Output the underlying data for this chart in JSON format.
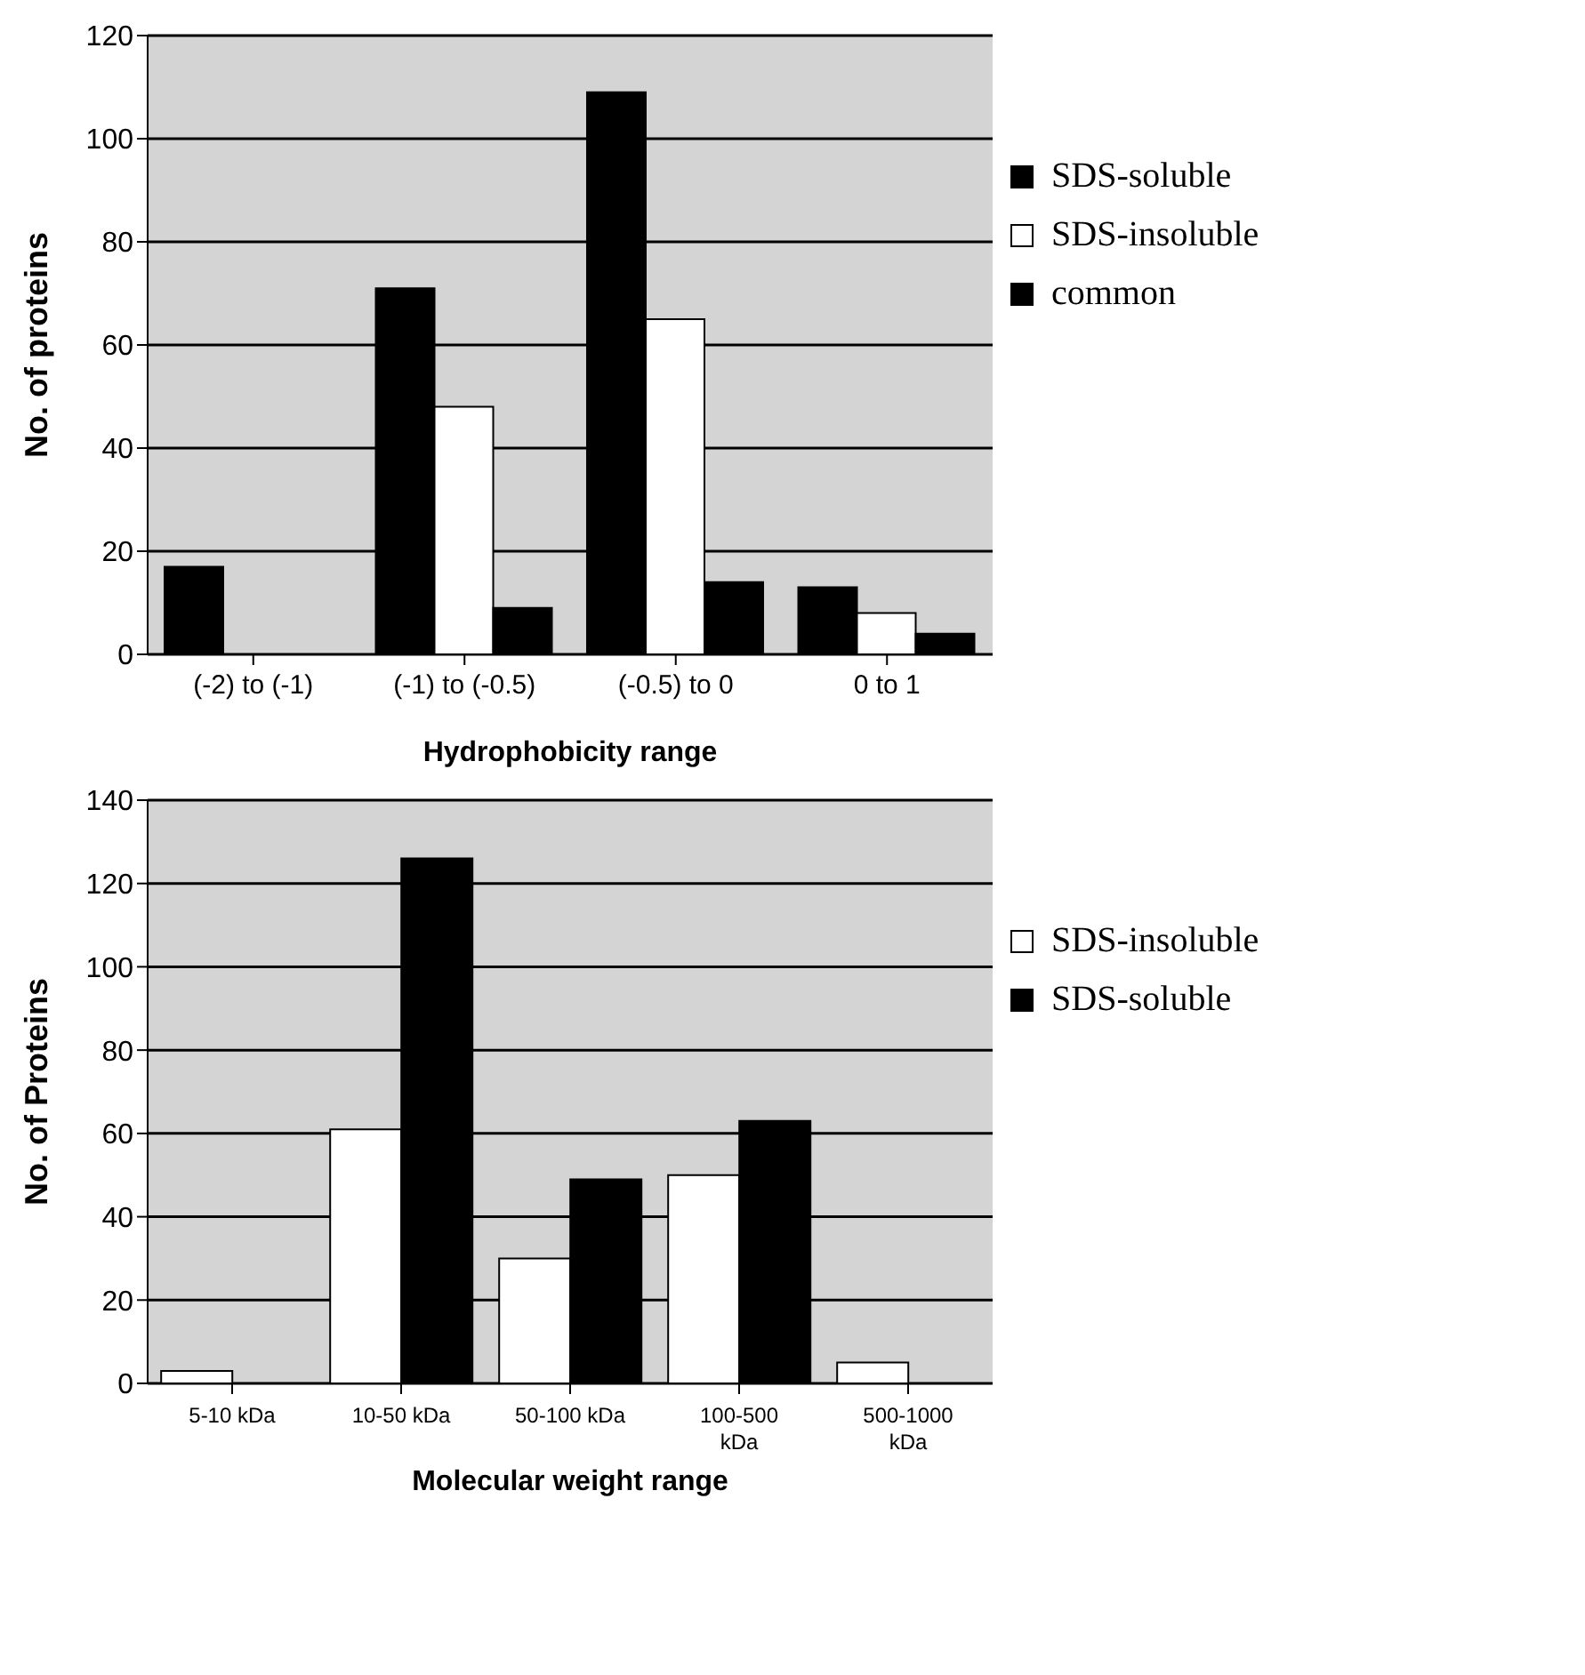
{
  "chart_data": [
    {
      "type": "bar",
      "xlabel": "Hydrophobicity range",
      "ylabel": "No. of proteins",
      "categories": [
        "(-2) to (-1)",
        "(-1) to (-0.5)",
        "(-0.5) to 0",
        "0 to 1"
      ],
      "series": [
        {
          "name": "SDS-soluble",
          "color": "#000000",
          "values": [
            17,
            71,
            109,
            13
          ]
        },
        {
          "name": "SDS-insoluble",
          "color": "#ffffff",
          "values": [
            0,
            48,
            65,
            8
          ]
        },
        {
          "name": "common",
          "color": "#000000",
          "values": [
            0,
            9,
            14,
            4
          ]
        }
      ],
      "ylim": [
        0,
        120
      ],
      "yticks": [
        0,
        20,
        40,
        60,
        80,
        100,
        120
      ],
      "grid": "y",
      "legend": "right"
    },
    {
      "type": "bar",
      "xlabel": "Molecular weight range",
      "ylabel": "No. of Proteins",
      "categories": [
        "5-10 kDa",
        "10-50 kDa",
        "50-100 kDa",
        "100-500 kDa",
        "500-1000 kDa"
      ],
      "series": [
        {
          "name": "SDS-insoluble",
          "color": "#ffffff",
          "values": [
            3,
            61,
            30,
            50,
            5
          ]
        },
        {
          "name": "SDS-soluble",
          "color": "#000000",
          "values": [
            0,
            126,
            49,
            63,
            0
          ]
        }
      ],
      "ylim": [
        0,
        140
      ],
      "yticks": [
        0,
        20,
        40,
        60,
        80,
        100,
        120,
        140
      ],
      "grid": "y",
      "legend": "right"
    }
  ]
}
